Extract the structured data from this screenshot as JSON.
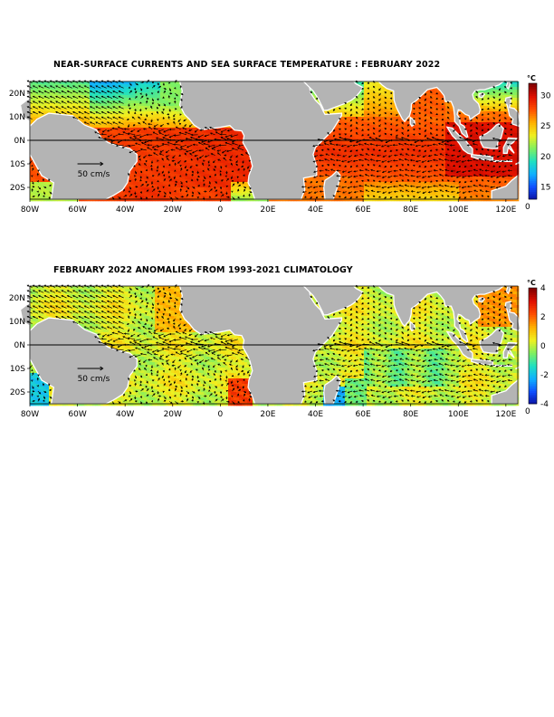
{
  "panels": [
    {
      "title": "NEAR-SURFACE CURRENTS AND SEA SURFACE TEMPERATURE : FEBRUARY 2022",
      "variable": "sst",
      "colorbar": {
        "unit": "°C",
        "ticks": [
          "30",
          "25",
          "20",
          "15"
        ],
        "extra_tick": "0",
        "min": 13,
        "max": 32,
        "colormap": [
          "#0a10a0",
          "#1050ff",
          "#10b0ff",
          "#20e0c0",
          "#80f060",
          "#f0f020",
          "#ffb000",
          "#ff5000",
          "#e01000",
          "#800000"
        ]
      },
      "scale_label": "50 cm/s"
    },
    {
      "title": "FEBRUARY 2022 ANOMALIES FROM 1993-2021 CLIMATOLOGY",
      "variable": "anomaly",
      "colorbar": {
        "unit": "°C",
        "ticks": [
          "4",
          "2",
          "0",
          "-2",
          "-4"
        ],
        "extra_tick": "0",
        "min": -4,
        "max": 4,
        "colormap": [
          "#0a10a0",
          "#1050ff",
          "#10b0ff",
          "#20e0c0",
          "#80f060",
          "#f0f020",
          "#ffb000",
          "#ff5000",
          "#e01000",
          "#800000"
        ]
      },
      "scale_label": "50 cm/s"
    }
  ],
  "axes": {
    "lon_labels": [
      "80W",
      "60W",
      "40W",
      "20W",
      "0",
      "20E",
      "40E",
      "60E",
      "80E",
      "100E",
      "120E"
    ],
    "lat_labels": [
      "20N",
      "10N",
      "0N",
      "10S",
      "20S"
    ],
    "lon_range": [
      -80,
      125
    ],
    "lat_range": [
      -25,
      25
    ]
  },
  "colors": {
    "land": "#b4b4b4",
    "equator": "#000000",
    "arrows": "#000000",
    "coast": "#ffffff"
  }
}
